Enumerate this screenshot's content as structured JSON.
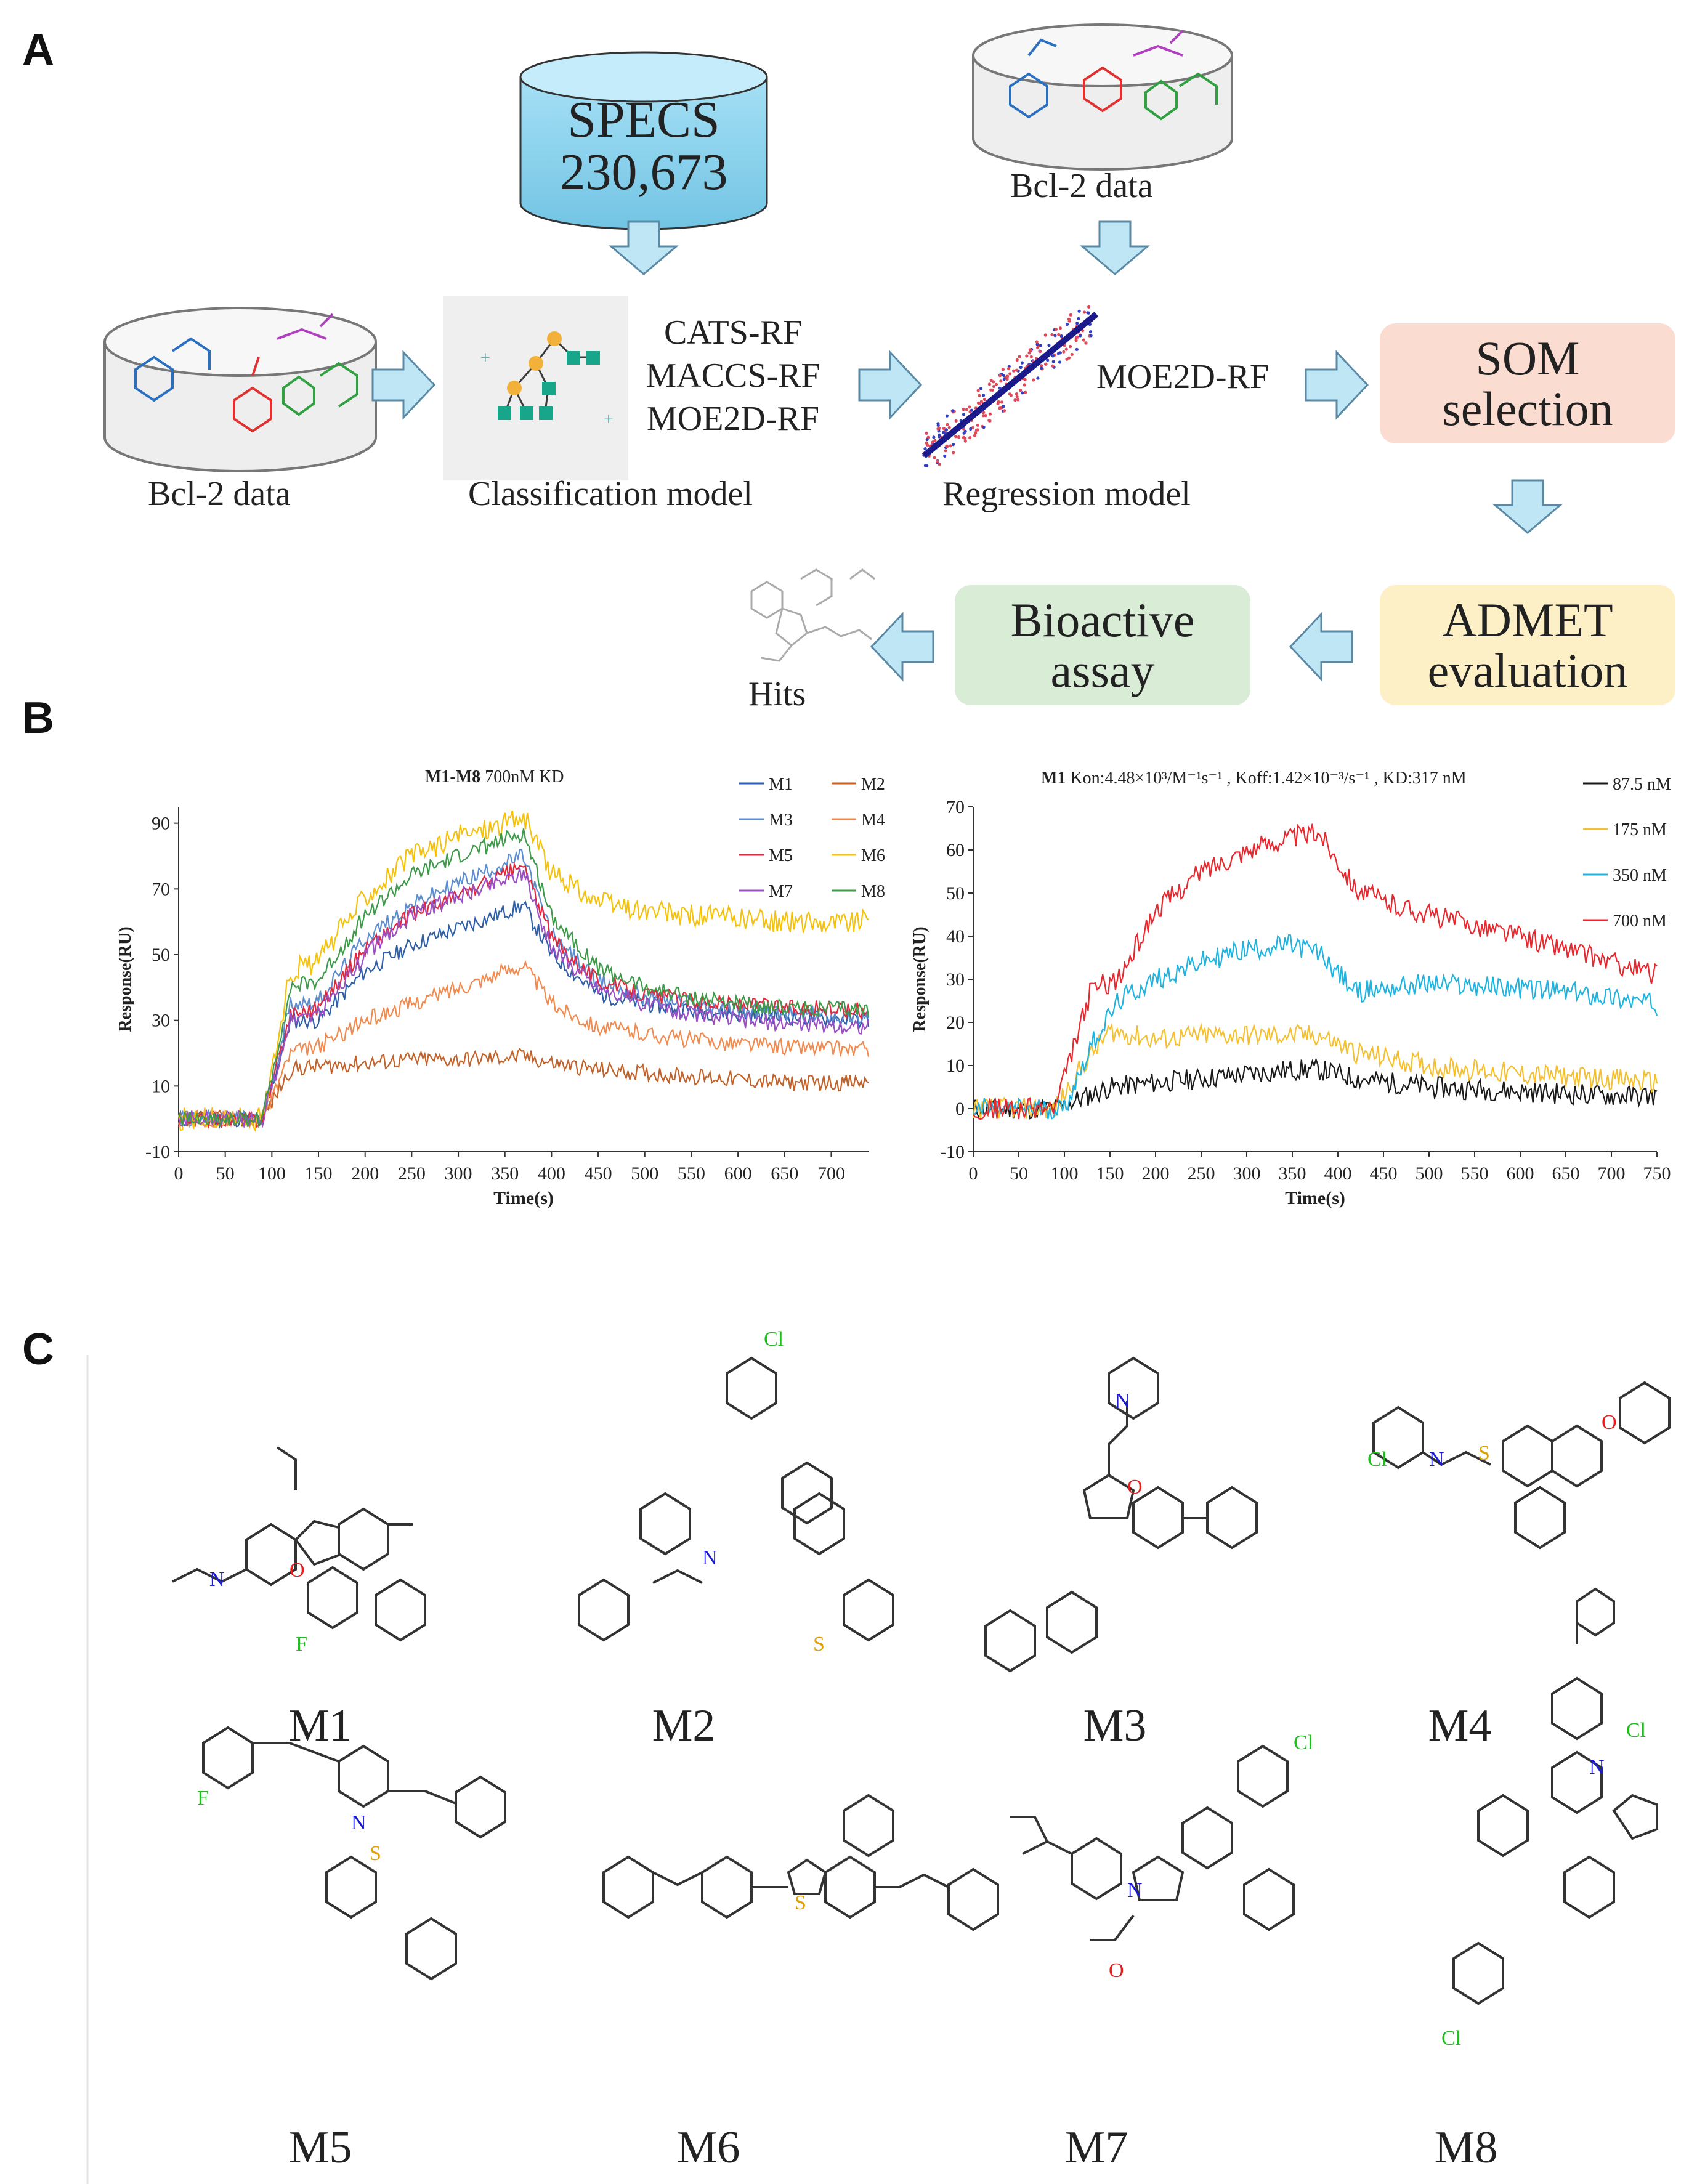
{
  "panels": {
    "a": "A",
    "b": "B",
    "c": "C"
  },
  "workflow": {
    "specs_title": "SPECS",
    "specs_count": "230,673",
    "bcl2_label_top": "Bcl-2 data",
    "bcl2_label_left": "Bcl-2 data",
    "classification_label": "Classification model",
    "classification_models": [
      "CATS-RF",
      "MACCS-RF",
      "MOE2D-RF"
    ],
    "regression_label": "Regression model",
    "regression_model": "MOE2D-RF",
    "som_box": "SOM selection",
    "admet_box": "ADMET evaluation",
    "bioactive_box": "Bioactive assay",
    "hits_label": "Hits",
    "colors": {
      "som": "#fbdcd0",
      "admet": "#fdefc6",
      "bioactive": "#d8ecd6",
      "arrow": "#bfe6f5",
      "cylinder": "#a3dcf1"
    }
  },
  "chart_data": [
    {
      "type": "line",
      "title_bold": "M1-M8",
      "title_rest": "700nM KD",
      "xlabel": "Time(s)",
      "ylabel": "Response(RU)",
      "xlim": [
        0,
        740
      ],
      "ylim": [
        -10,
        95
      ],
      "xticks": [
        0,
        50,
        100,
        150,
        200,
        250,
        300,
        350,
        400,
        450,
        500,
        550,
        600,
        650,
        700
      ],
      "yticks": [
        -10,
        10,
        30,
        50,
        70,
        90
      ],
      "legend": "top-right",
      "series": [
        {
          "name": "M1",
          "color": "#2e5fa8",
          "x": [
            0,
            90,
            120,
            150,
            200,
            250,
            300,
            370,
            400,
            450,
            500,
            550,
            600,
            650,
            740
          ],
          "values": [
            0,
            0,
            30,
            30,
            45,
            53,
            58,
            65,
            50,
            38,
            35,
            33,
            32,
            31,
            30
          ]
        },
        {
          "name": "M2",
          "color": "#c0622a",
          "x": [
            0,
            90,
            120,
            150,
            200,
            250,
            300,
            370,
            400,
            450,
            500,
            550,
            600,
            650,
            740
          ],
          "values": [
            0,
            0,
            15,
            16,
            17,
            18,
            18,
            19,
            17,
            15,
            14,
            13,
            12,
            11,
            11
          ]
        },
        {
          "name": "M3",
          "color": "#5b8dd0",
          "x": [
            0,
            90,
            120,
            150,
            200,
            250,
            300,
            370,
            400,
            450,
            500,
            550,
            600,
            650,
            740
          ],
          "values": [
            0,
            0,
            35,
            36,
            55,
            65,
            72,
            80,
            56,
            42,
            37,
            35,
            33,
            32,
            31
          ]
        },
        {
          "name": "M4",
          "color": "#f08a4e",
          "x": [
            0,
            90,
            120,
            150,
            200,
            250,
            300,
            370,
            400,
            450,
            500,
            550,
            600,
            650,
            740
          ],
          "values": [
            0,
            0,
            20,
            22,
            30,
            35,
            40,
            47,
            35,
            28,
            26,
            24,
            23,
            22,
            21
          ]
        },
        {
          "name": "M5",
          "color": "#e2283e",
          "x": [
            0,
            90,
            120,
            150,
            200,
            250,
            300,
            370,
            400,
            450,
            500,
            550,
            600,
            650,
            740
          ],
          "values": [
            0,
            0,
            32,
            34,
            52,
            62,
            68,
            77,
            55,
            42,
            38,
            36,
            35,
            34,
            33
          ]
        },
        {
          "name": "M6",
          "color": "#f4c20d",
          "x": [
            0,
            90,
            120,
            150,
            200,
            250,
            300,
            370,
            400,
            450,
            500,
            550,
            600,
            650,
            740
          ],
          "values": [
            0,
            0,
            45,
            48,
            68,
            80,
            86,
            92,
            75,
            66,
            63,
            62,
            61,
            60,
            60
          ]
        },
        {
          "name": "M7",
          "color": "#9b4fc4",
          "x": [
            0,
            90,
            120,
            150,
            200,
            250,
            300,
            370,
            400,
            450,
            500,
            550,
            600,
            650,
            740
          ],
          "values": [
            0,
            0,
            30,
            32,
            50,
            62,
            68,
            75,
            52,
            40,
            35,
            32,
            30,
            29,
            28
          ]
        },
        {
          "name": "M8",
          "color": "#3c9a48",
          "x": [
            0,
            90,
            120,
            150,
            200,
            250,
            300,
            370,
            400,
            450,
            500,
            550,
            600,
            650,
            740
          ],
          "values": [
            0,
            0,
            40,
            42,
            62,
            74,
            80,
            87,
            62,
            46,
            40,
            37,
            35,
            34,
            33
          ]
        }
      ]
    },
    {
      "type": "line",
      "title_bold": "M1",
      "title_rest": "Kon:4.48×10³/M⁻¹s⁻¹ , Koff:1.42×10⁻³/s⁻¹ , KD:317 nM",
      "xlabel": "Time(s)",
      "ylabel": "Response(RU)",
      "xlim": [
        0,
        750
      ],
      "ylim": [
        -10,
        70
      ],
      "xticks": [
        0,
        50,
        100,
        150,
        200,
        250,
        300,
        350,
        400,
        450,
        500,
        550,
        600,
        650,
        700,
        750
      ],
      "yticks": [
        -10,
        0,
        10,
        20,
        30,
        40,
        50,
        60,
        70
      ],
      "legend": "top-right",
      "series": [
        {
          "name": "87.5 nM",
          "color": "#1a1a1a",
          "x": [
            0,
            90,
            150,
            200,
            250,
            300,
            350,
            380,
            420,
            500,
            600,
            700,
            750
          ],
          "values": [
            0,
            0,
            5,
            6,
            7,
            8,
            9,
            9,
            7,
            5,
            4,
            3,
            3
          ]
        },
        {
          "name": "175 nM",
          "color": "#f5c030",
          "x": [
            0,
            90,
            120,
            150,
            200,
            250,
            300,
            350,
            380,
            420,
            500,
            600,
            700,
            750
          ],
          "values": [
            0,
            0,
            10,
            18,
            16,
            17,
            17,
            17,
            17,
            13,
            10,
            8,
            7,
            6
          ]
        },
        {
          "name": "350 nM",
          "color": "#1fb3e0",
          "x": [
            0,
            100,
            130,
            160,
            200,
            250,
            300,
            350,
            380,
            420,
            450,
            500,
            600,
            700,
            750
          ],
          "values": [
            0,
            0,
            15,
            25,
            30,
            34,
            37,
            38,
            36,
            27,
            28,
            29,
            28,
            26,
            24
          ]
        },
        {
          "name": "700 nM",
          "color": "#e8282e",
          "x": [
            0,
            90,
            130,
            160,
            200,
            250,
            300,
            350,
            380,
            420,
            450,
            500,
            600,
            700,
            750
          ],
          "values": [
            0,
            0,
            28,
            30,
            46,
            55,
            60,
            63,
            64,
            51,
            48,
            45,
            40,
            34,
            31
          ]
        }
      ]
    }
  ],
  "molecules": [
    "M1",
    "M2",
    "M3",
    "M4",
    "M5",
    "M6",
    "M7",
    "M8"
  ]
}
